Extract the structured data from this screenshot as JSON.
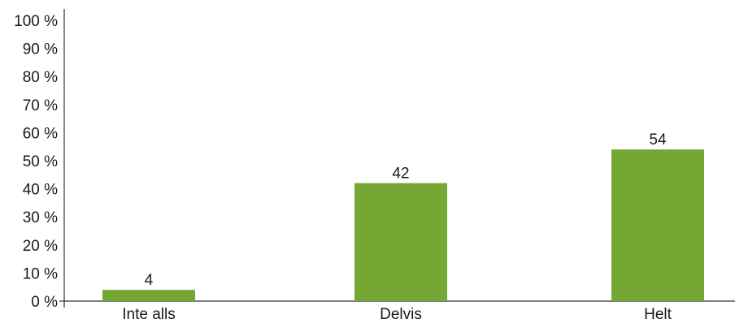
{
  "chart_data": {
    "type": "bar",
    "categories": [
      "Inte alls",
      "Delvis",
      "Helt"
    ],
    "values": [
      4,
      42,
      54
    ],
    "data_labels": [
      "4",
      "42",
      "54"
    ],
    "ylim": [
      0,
      100
    ],
    "y_ticks": [
      0,
      10,
      20,
      30,
      40,
      50,
      60,
      70,
      80,
      90,
      100
    ],
    "y_tick_labels": [
      "0 %",
      "10 %",
      "20 %",
      "30 %",
      "40 %",
      "50 %",
      "60 %",
      "70 %",
      "80 %",
      "90 %",
      "100 %"
    ],
    "grid": false,
    "legend": "none",
    "bar_color": "#74a733",
    "axis_color": "#333333"
  }
}
